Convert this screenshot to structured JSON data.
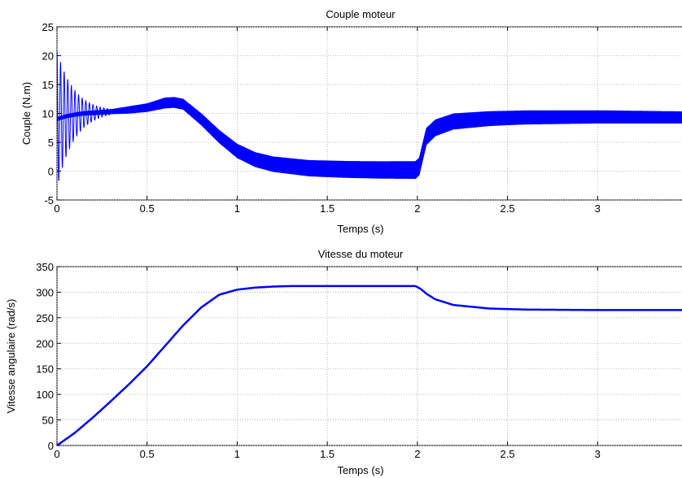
{
  "chart_data": [
    {
      "type": "line",
      "title": "Couple moteur",
      "xlabel": "Temps (s)",
      "ylabel": "Couple (N.m)",
      "xlim": [
        0,
        3.5
      ],
      "ylim": [
        -5,
        25
      ],
      "xticks": [
        0,
        0.5,
        1,
        1.5,
        2,
        2.5,
        3
      ],
      "xtick_labels": [
        "0",
        "0.5",
        "1",
        "1.5",
        "2",
        "2.5",
        "3"
      ],
      "yticks": [
        -5,
        0,
        5,
        10,
        15,
        20,
        25
      ],
      "ytick_labels": [
        "-5",
        "0",
        "5",
        "10",
        "15",
        "20",
        "25"
      ],
      "grid": true,
      "color": "#0000ff",
      "band_center": {
        "x": [
          0,
          0.05,
          0.1,
          0.15,
          0.2,
          0.25,
          0.3,
          0.4,
          0.5,
          0.6,
          0.65,
          0.7,
          0.8,
          0.9,
          1.0,
          1.1,
          1.2,
          1.4,
          1.6,
          1.8,
          1.99,
          2.01,
          2.05,
          2.1,
          2.2,
          2.4,
          2.6,
          3.0,
          3.5
        ],
        "y": [
          9.0,
          9.5,
          9.8,
          10.0,
          10.1,
          10.2,
          10.3,
          10.6,
          11.0,
          11.8,
          11.9,
          11.6,
          9.0,
          6.0,
          3.5,
          2.0,
          1.2,
          0.5,
          0.3,
          0.2,
          0.2,
          0.8,
          6.0,
          7.5,
          8.6,
          9.1,
          9.3,
          9.4,
          9.3
        ]
      },
      "band_halfwidth": {
        "x": [
          0,
          0.3,
          0.4,
          0.5,
          0.6,
          0.7,
          0.8,
          1.0,
          1.2,
          1.5,
          2.0,
          2.1,
          2.5,
          3.0,
          3.5
        ],
        "y": [
          0.3,
          0.4,
          0.6,
          0.7,
          0.9,
          0.9,
          1.0,
          1.2,
          1.3,
          1.4,
          1.5,
          1.4,
          1.2,
          1.1,
          1.0
        ]
      },
      "transient_oscillation": {
        "x_end": 0.3,
        "initial_amplitude": 12,
        "frequency_hz": 50
      }
    },
    {
      "type": "line",
      "title": "Vitesse du moteur",
      "xlabel": "Temps (s)",
      "ylabel": "Vitesse angulaire (rad/s)",
      "xlim": [
        0,
        3.5
      ],
      "ylim": [
        0,
        350
      ],
      "xticks": [
        0,
        0.5,
        1,
        1.5,
        2,
        2.5,
        3
      ],
      "xtick_labels": [
        "0",
        "0.5",
        "1",
        "1.5",
        "2",
        "2.5",
        "3"
      ],
      "yticks": [
        0,
        50,
        100,
        150,
        200,
        250,
        300,
        350
      ],
      "ytick_labels": [
        "0",
        "50",
        "100",
        "150",
        "200",
        "250",
        "300",
        "350"
      ],
      "grid": true,
      "color": "#0000ff",
      "x": [
        0,
        0.1,
        0.2,
        0.3,
        0.4,
        0.5,
        0.6,
        0.7,
        0.8,
        0.9,
        1.0,
        1.1,
        1.2,
        1.3,
        1.5,
        1.8,
        1.99,
        2.02,
        2.05,
        2.1,
        2.2,
        2.4,
        2.6,
        3.0,
        3.5
      ],
      "y": [
        0,
        25,
        55,
        87,
        120,
        155,
        195,
        235,
        270,
        295,
        305,
        309,
        311,
        312,
        312,
        312,
        312,
        306,
        297,
        286,
        275,
        268,
        266,
        265,
        265
      ]
    }
  ]
}
